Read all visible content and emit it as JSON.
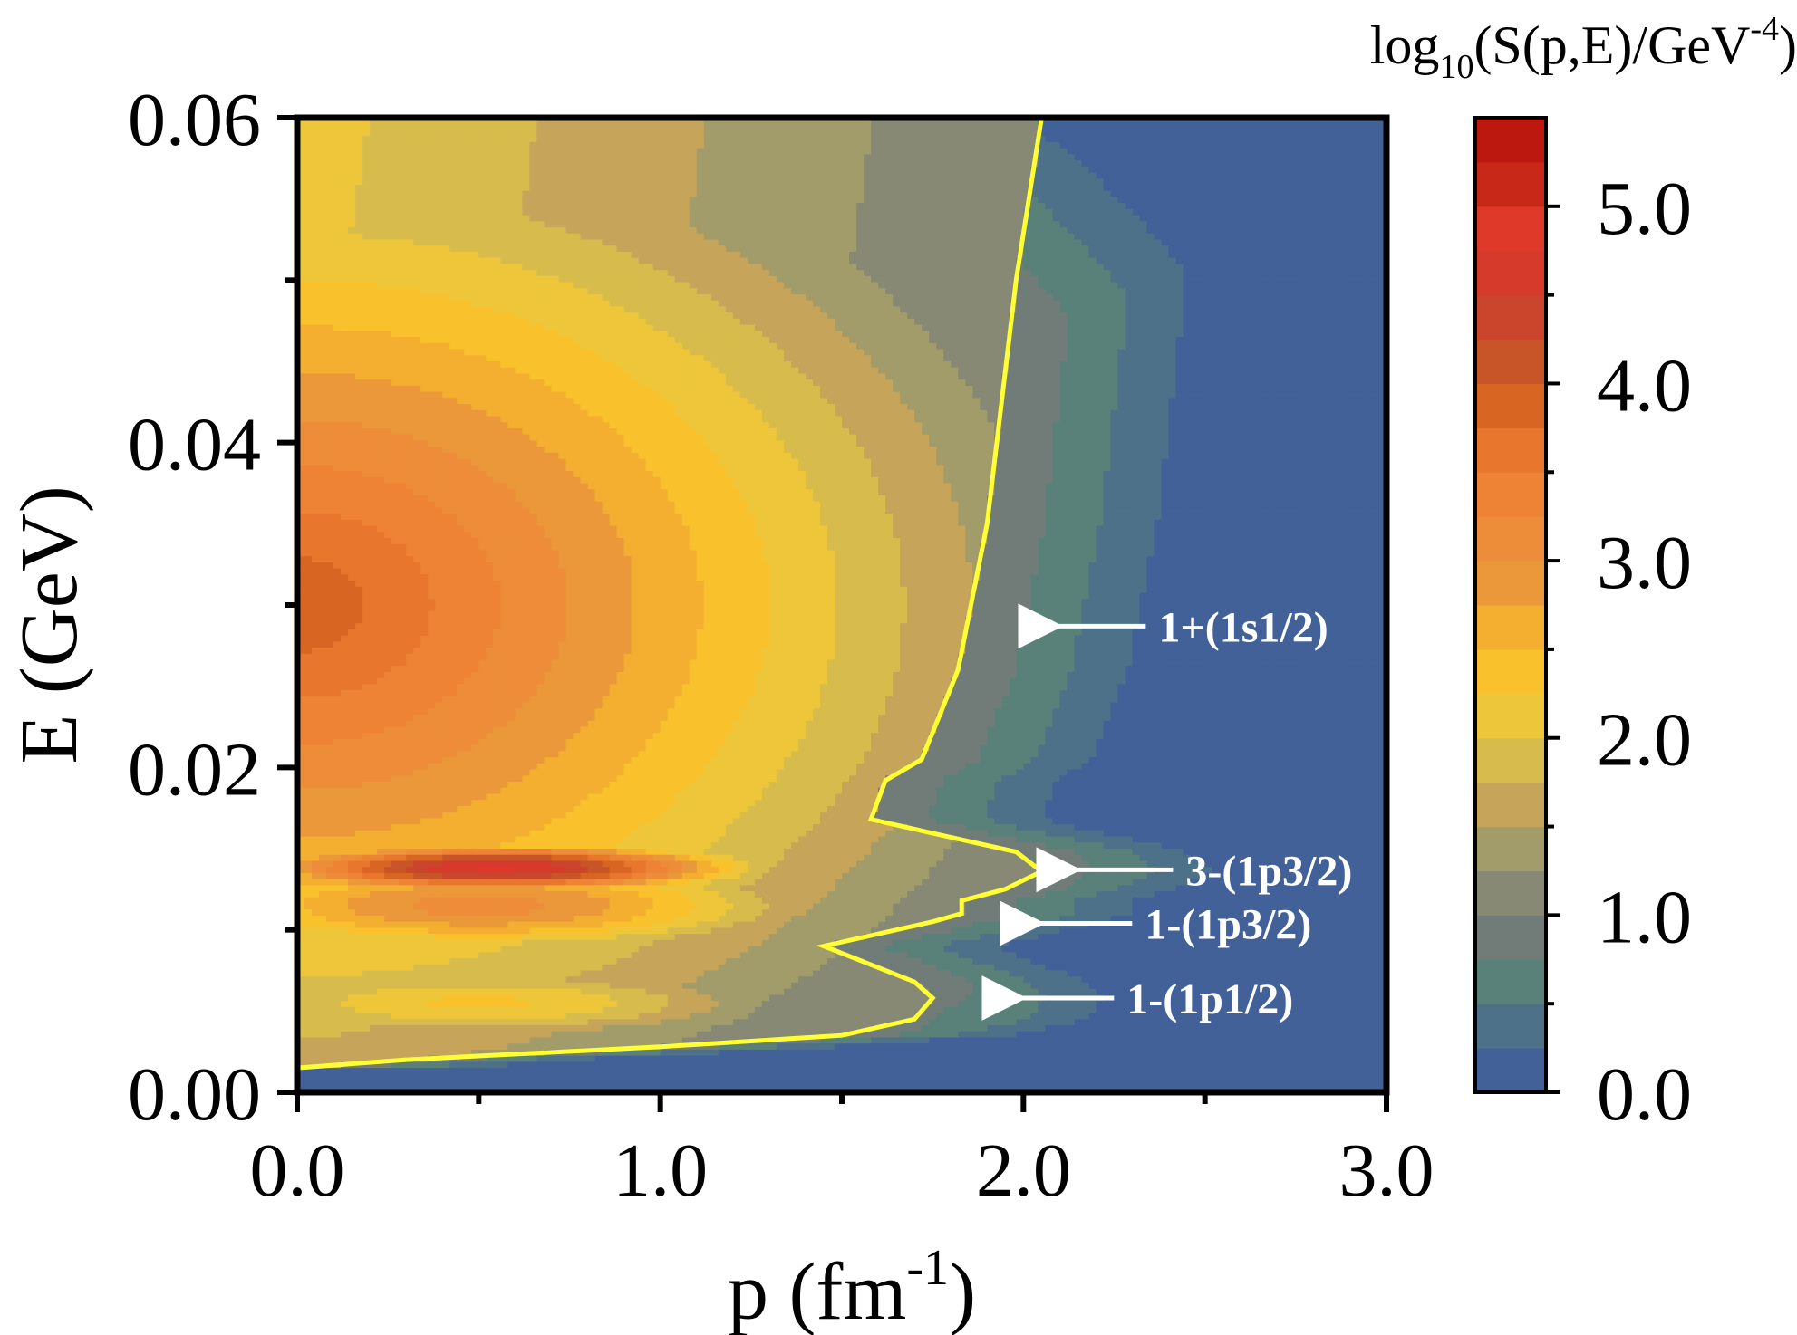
{
  "chart_data": {
    "type": "heatmap",
    "xlabel": {
      "base": "p (fm",
      "sup": "-1",
      "tail": ")"
    },
    "ylabel": "E (GeV)",
    "xlim": [
      0.0,
      3.0
    ],
    "ylim": [
      0.0,
      0.06
    ],
    "xticks": [
      "0.0",
      "1.0",
      "2.0",
      "3.0"
    ],
    "xtick_values": [
      0.0,
      1.0,
      2.0,
      3.0
    ],
    "xminor_values": [
      0.5,
      1.5,
      2.5
    ],
    "yticks": [
      "0.00",
      "0.02",
      "0.04",
      "0.06"
    ],
    "ytick_values": [
      0.0,
      0.02,
      0.04,
      0.06
    ],
    "yminor_values": [
      0.01,
      0.03,
      0.05
    ],
    "colorbar": {
      "label": {
        "pre": "log",
        "sub": "10",
        "mid": "(S(p,E)/GeV",
        "sup": "-4",
        "post": ")"
      },
      "range": [
        0.0,
        5.5
      ],
      "ticks": [
        "0.0",
        "1.0",
        "2.0",
        "3.0",
        "4.0",
        "5.0"
      ],
      "tick_values": [
        0.0,
        1.0,
        2.0,
        3.0,
        4.0,
        5.0
      ],
      "minor_values": [
        0.5,
        1.5,
        2.5,
        3.5,
        4.5
      ],
      "levels": 22,
      "colors": [
        "#3d58a0",
        "#4a6e8c",
        "#5a8278",
        "#7a7a78",
        "#969a70",
        "#c5a35a",
        "#dcc24a",
        "#fbc92c",
        "#f5b32e",
        "#e9943c",
        "#f08a38",
        "#ec7a30",
        "#d86422",
        "#c2502a",
        "#d23a2c",
        "#e03a2a",
        "#c42414",
        "#b8100e"
      ]
    },
    "contour_color": "#ffff33",
    "contour_level": 1.0,
    "contour_points": [
      [
        0.0,
        0.0015
      ],
      [
        0.3,
        0.002
      ],
      [
        1.0,
        0.0028
      ],
      [
        1.5,
        0.0035
      ],
      [
        1.7,
        0.0045
      ],
      [
        1.75,
        0.0058
      ],
      [
        1.7,
        0.0068
      ],
      [
        1.45,
        0.009
      ],
      [
        1.75,
        0.0105
      ],
      [
        1.83,
        0.011
      ],
      [
        1.83,
        0.0118
      ],
      [
        1.95,
        0.0125
      ],
      [
        2.05,
        0.0136
      ],
      [
        1.98,
        0.0148
      ],
      [
        1.58,
        0.0168
      ],
      [
        1.62,
        0.0192
      ],
      [
        1.72,
        0.0205
      ],
      [
        1.82,
        0.026
      ],
      [
        1.9,
        0.035
      ],
      [
        1.98,
        0.05
      ],
      [
        2.05,
        0.06
      ]
    ],
    "annotations": [
      {
        "text": "1+(1s1/2)",
        "x": 2.05,
        "y": 0.0287
      },
      {
        "text": "3-(1p3/2)",
        "x": 2.1,
        "y": 0.0137
      },
      {
        "text": "1-(1p3/2)",
        "x": 2.0,
        "y": 0.0104
      },
      {
        "text": "1-(1p1/2)",
        "x": 1.95,
        "y": 0.0058
      }
    ]
  }
}
